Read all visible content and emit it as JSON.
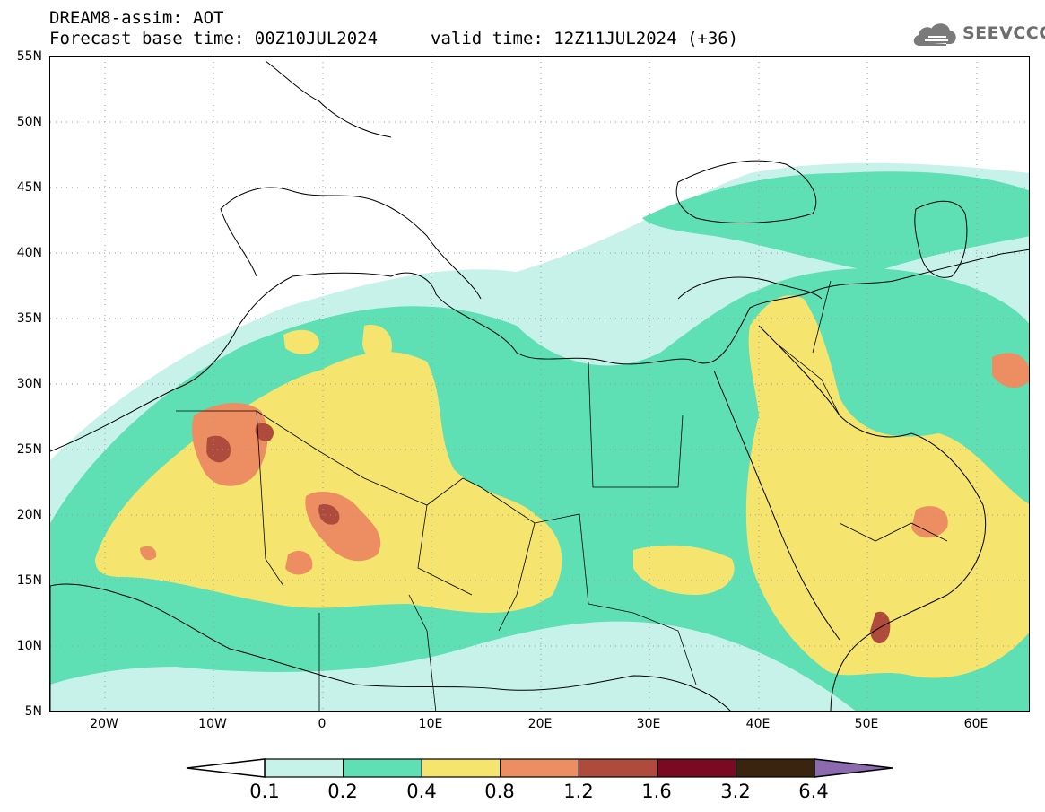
{
  "header": {
    "title": "DREAM8-assim: AOT",
    "base_time": "Forecast base time: 00Z10JUL2024",
    "valid_time": "valid time: 12Z11JUL2024 (+36)"
  },
  "logo": {
    "text": "SEEVCCC",
    "icon": "cloud-icon"
  },
  "map": {
    "lat_labels": [
      "55N",
      "50N",
      "45N",
      "40N",
      "35N",
      "30N",
      "25N",
      "20N",
      "15N",
      "10N",
      "5N"
    ],
    "lon_labels": [
      "20W",
      "10W",
      "0",
      "10E",
      "20E",
      "30E",
      "40E",
      "50E",
      "60E"
    ],
    "lon_range": [
      -25,
      65
    ],
    "lat_range": [
      5,
      55
    ]
  },
  "colorbar": {
    "levels": [
      "0.1",
      "0.2",
      "0.4",
      "0.8",
      "1.2",
      "1.6",
      "3.2",
      "6.4"
    ],
    "colors": [
      "#c6f2ea",
      "#5ee0b4",
      "#f5e56e",
      "#ec8e62",
      "#ae4b3c",
      "#7a0a22",
      "#3a2410",
      "#8c6ab0"
    ]
  }
}
